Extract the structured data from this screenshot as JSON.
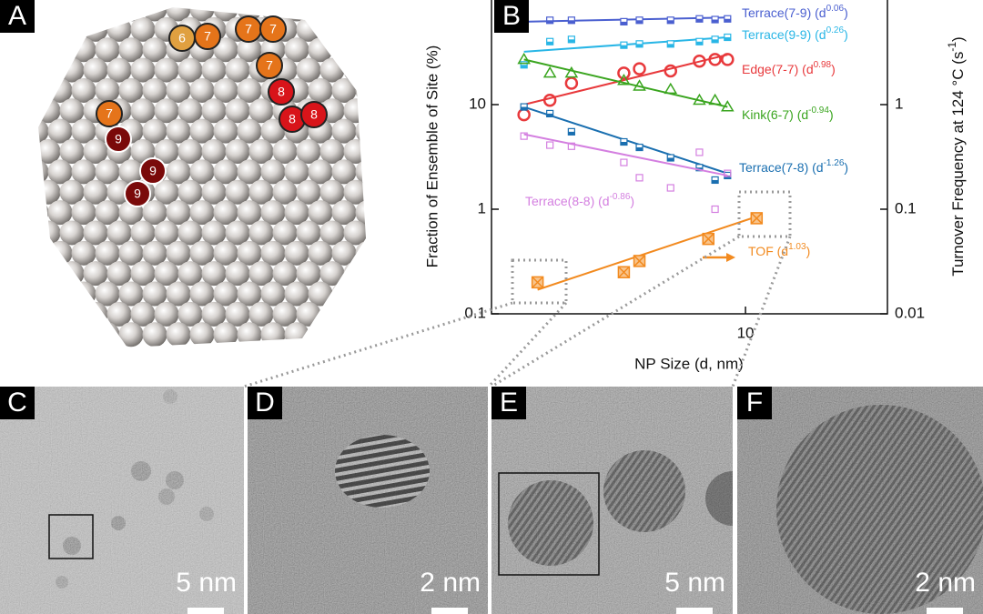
{
  "panel_labels": [
    "A",
    "B",
    "C",
    "D",
    "E",
    "F"
  ],
  "atoms": [
    "6",
    "7",
    "7",
    "7",
    "7",
    "8",
    "8",
    "8",
    "7",
    "9",
    "9",
    "9"
  ],
  "chart_data": {
    "type": "scatter",
    "x_label": "NP Size (d, nm)",
    "y_label": "Fraction of Ensemble of Site (%)",
    "y2_label": [
      "Turnover Frequency at 124 °C (s",
      "-1",
      ")"
    ],
    "xscale": "log",
    "yscale": "log",
    "xlim": [
      1.4,
      30
    ],
    "ylim": [
      0.1,
      100
    ],
    "y2lim": [
      0.01,
      10
    ],
    "xticks": [
      10
    ],
    "yticks": [
      0.1,
      1,
      10
    ],
    "y2ticks": [
      0.01,
      0.1,
      1
    ],
    "series": [
      {
        "name": "Terrace(7-9)",
        "fit_label": [
          "(d",
          "0.06",
          ")"
        ],
        "color": "#4a5fd0",
        "marker": "square-half",
        "x": [
          1.8,
          2.2,
          2.6,
          3.9,
          4.4,
          5.6,
          7.0,
          7.9,
          8.7
        ],
        "values": [
          62,
          64,
          64,
          62,
          64,
          64,
          66,
          65,
          66
        ],
        "fit": {
          "x": [
            1.8,
            8.7
          ],
          "values": [
            62,
            68
          ]
        }
      },
      {
        "name": "Terrace(9-9)",
        "fit_label": [
          "(d",
          "0.26",
          ")"
        ],
        "color": "#29b6e6",
        "marker": "square-half",
        "x": [
          1.8,
          2.2,
          2.6,
          3.9,
          4.4,
          5.6,
          7.0,
          7.9,
          8.7
        ],
        "values": [
          24,
          40,
          42,
          37,
          38,
          38,
          40,
          42,
          44
        ],
        "fit": {
          "x": [
            1.8,
            8.7
          ],
          "values": [
            32,
            44
          ]
        }
      },
      {
        "name": "Edge(7-7)",
        "fit_label": [
          "(d",
          "0.98",
          ")"
        ],
        "color": "#e8393c",
        "marker": "circle",
        "x": [
          1.8,
          2.2,
          2.6,
          3.9,
          4.4,
          5.6,
          7.0,
          7.9,
          8.7
        ],
        "values": [
          8,
          11,
          16,
          20,
          22,
          21,
          26,
          27,
          27
        ],
        "fit": {
          "x": [
            1.8,
            8.7
          ],
          "values": [
            10,
            30
          ]
        }
      },
      {
        "name": "Kink(6-7)",
        "fit_label": [
          "(d",
          "-0.94",
          ")"
        ],
        "color": "#3aa51f",
        "marker": "triangle",
        "x": [
          1.8,
          2.2,
          2.6,
          3.9,
          4.4,
          5.6,
          7.0,
          7.9,
          8.7
        ],
        "values": [
          27,
          20,
          20,
          17,
          15,
          14,
          11,
          11,
          9.5
        ],
        "fit": {
          "x": [
            1.8,
            8.7
          ],
          "values": [
            27,
            9.5
          ]
        }
      },
      {
        "name": "Terrace(7-8)",
        "fit_label": [
          "(d",
          "-1.26",
          ")"
        ],
        "color": "#1a6fb0",
        "marker": "square-half",
        "x": [
          1.8,
          2.2,
          2.6,
          3.9,
          4.4,
          5.6,
          7.0,
          7.9,
          8.7
        ],
        "values": [
          9.5,
          8.2,
          5.5,
          4.4,
          3.9,
          3.1,
          2.5,
          1.9,
          2.1
        ],
        "fit": {
          "x": [
            1.8,
            8.7
          ],
          "values": [
            9.5,
            2.2
          ]
        }
      },
      {
        "name": "Terrace(8-8)",
        "fit_label": [
          "(d",
          "-0.86",
          ")"
        ],
        "color": "#d47fe0",
        "marker": "square",
        "x": [
          1.8,
          2.2,
          2.6,
          3.9,
          4.4,
          5.6,
          7.0,
          7.9,
          8.7
        ],
        "values": [
          5,
          4.1,
          4,
          2.8,
          2,
          1.6,
          3.5,
          1,
          2.2
        ],
        "fit": {
          "x": [
            1.8,
            8.7
          ],
          "values": [
            5.2,
            2.1
          ]
        }
      },
      {
        "name": "TOF",
        "fit_label": [
          "(d",
          "1.03",
          ")"
        ],
        "color": "#f28a1f",
        "marker": "square-x",
        "axis": "y2",
        "x": [
          2.0,
          3.9,
          4.4,
          7.5,
          10.9
        ],
        "values": [
          0.02,
          0.025,
          0.032,
          0.052,
          0.082
        ],
        "fit": {
          "x": [
            2.0,
            10.9
          ],
          "values": [
            0.017,
            0.085
          ]
        }
      }
    ]
  },
  "micrographs": [
    {
      "scale": "5 nm"
    },
    {
      "scale": "2 nm"
    },
    {
      "scale": "5 nm"
    },
    {
      "scale": "2 nm"
    }
  ]
}
